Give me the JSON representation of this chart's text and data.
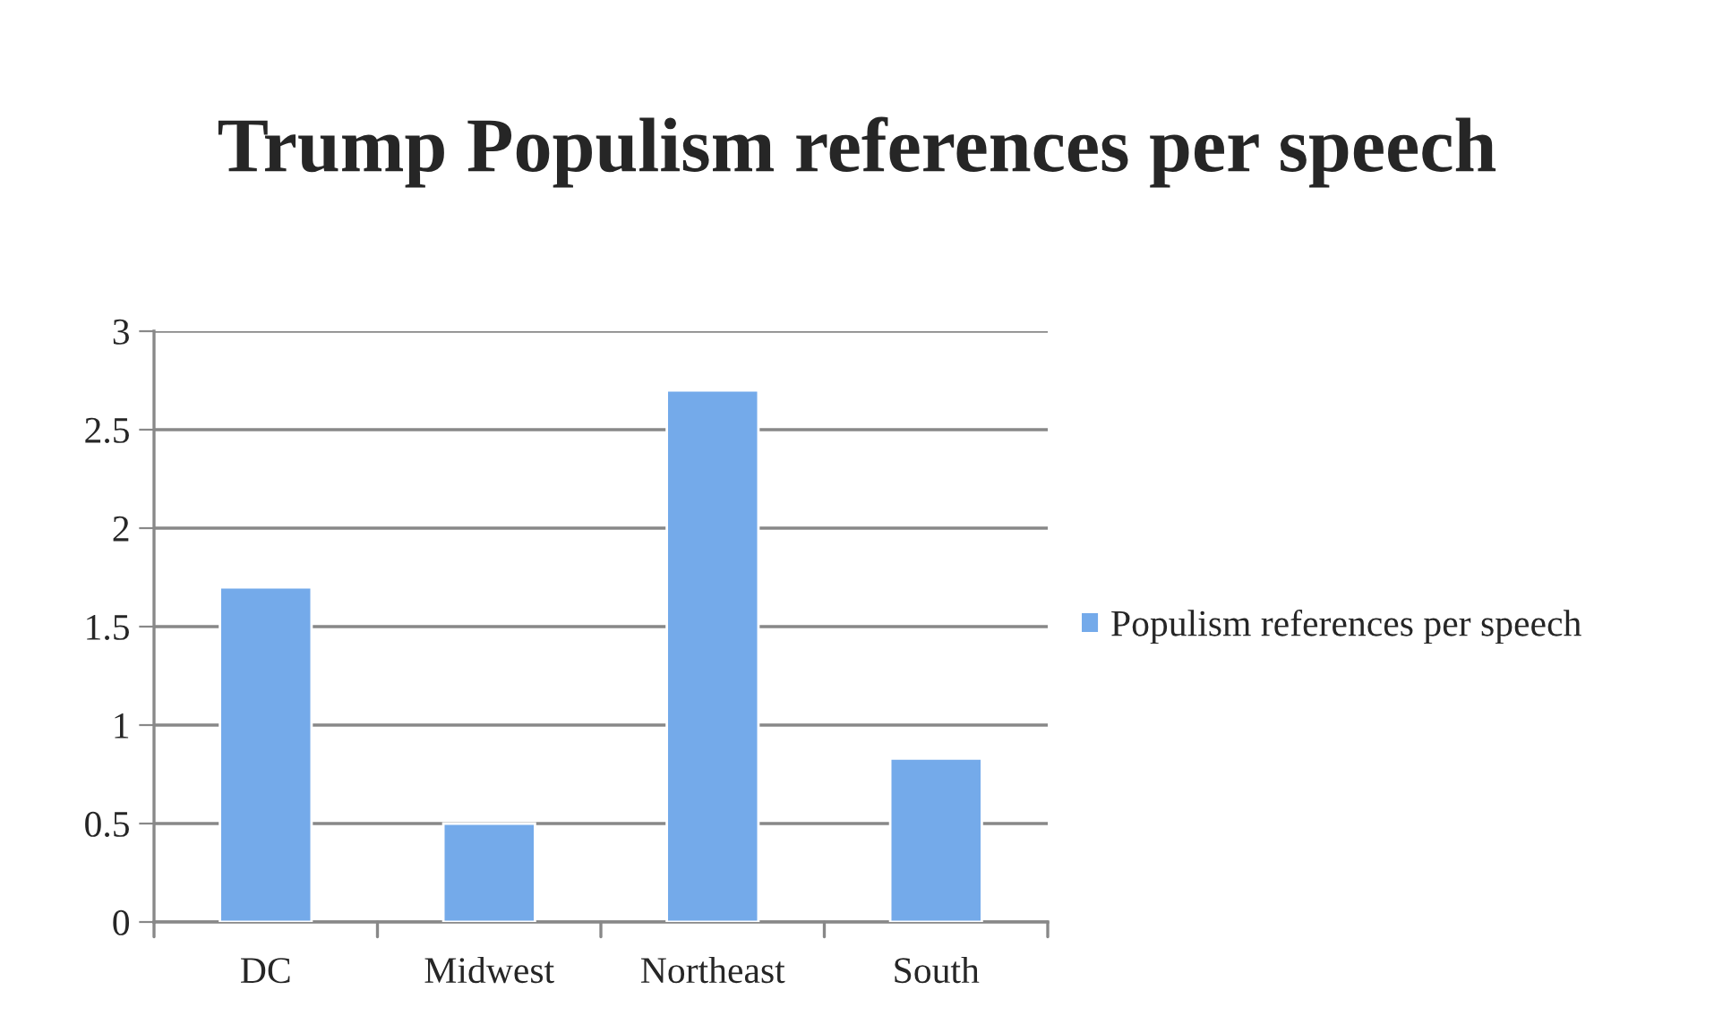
{
  "chart_data": {
    "type": "bar",
    "title": "Trump Populism references per speech",
    "categories": [
      "DC",
      "Midwest",
      "Northeast",
      "South"
    ],
    "series": [
      {
        "name": "Populism references per speech",
        "color": "#74aaea",
        "values": [
          1.7,
          0.5,
          2.7,
          0.83
        ]
      }
    ],
    "ylim": [
      0,
      3
    ],
    "yticks": [
      0,
      0.5,
      1,
      1.5,
      2,
      2.5,
      3
    ],
    "grid": "y",
    "legend": "right"
  }
}
